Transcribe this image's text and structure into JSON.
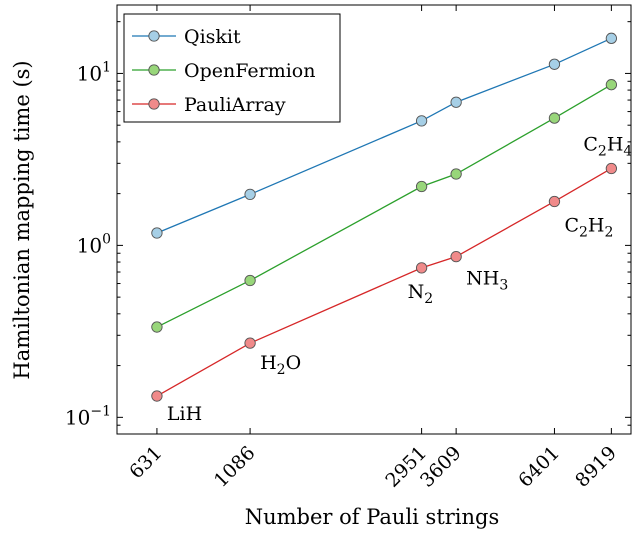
{
  "chart_data": {
    "type": "line",
    "xlabel": "Number of Pauli strings",
    "ylabel": "Hamiltonian mapping time (s)",
    "yscale": "log",
    "ylim": [
      0.08,
      25
    ],
    "xlim": [
      500,
      10000
    ],
    "x": [
      631,
      1086,
      2951,
      3609,
      6401,
      8919
    ],
    "x_tick_labels": [
      "631",
      "1086",
      "2951",
      "3609",
      "6401",
      "8919"
    ],
    "y_ticks": [
      {
        "value": 0.1,
        "base": "10",
        "exp": "−1"
      },
      {
        "value": 1,
        "base": "10",
        "exp": "0"
      },
      {
        "value": 10,
        "base": "10",
        "exp": "1"
      }
    ],
    "legend_position": "top-left",
    "grid": false,
    "series": [
      {
        "name": "Qiskit",
        "color": "#1f77b4",
        "fill": "#a6cfe6",
        "values": [
          1.18,
          1.98,
          5.3,
          6.8,
          11.3,
          16.0
        ]
      },
      {
        "name": "OpenFermion",
        "color": "#2ca02c",
        "fill": "#98d67a",
        "values": [
          0.335,
          0.625,
          2.2,
          2.6,
          5.5,
          8.6
        ]
      },
      {
        "name": "PauliArray",
        "color": "#d62728",
        "fill": "#f08a8a",
        "values": [
          0.133,
          0.27,
          0.74,
          0.86,
          1.8,
          2.8
        ]
      }
    ],
    "annotations": [
      {
        "base": "LiH",
        "sub": "",
        "rest": "",
        "sub2": ""
      },
      {
        "base": "H",
        "sub": "2",
        "rest": "O",
        "sub2": ""
      },
      {
        "base": "N",
        "sub": "2",
        "rest": "",
        "sub2": ""
      },
      {
        "base": "NH",
        "sub": "3",
        "rest": "",
        "sub2": ""
      },
      {
        "base": "C",
        "sub": "2",
        "rest": "H",
        "sub2": "2"
      },
      {
        "base": "C",
        "sub": "2",
        "rest": "H",
        "sub2": "4"
      }
    ]
  }
}
